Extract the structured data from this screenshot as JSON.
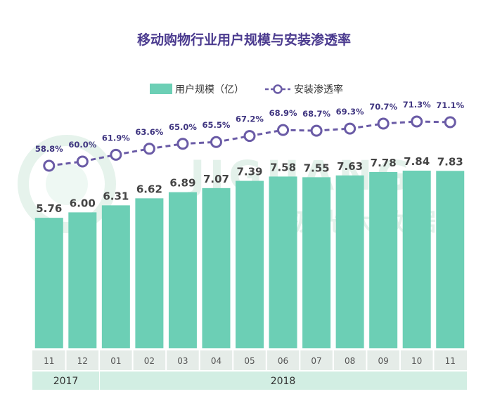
{
  "chart_data": {
    "type": "bar",
    "title": "移动购物行业用户规模与安装渗透率",
    "categories": [
      "11",
      "12",
      "01",
      "02",
      "03",
      "04",
      "05",
      "06",
      "07",
      "08",
      "09",
      "10",
      "11"
    ],
    "years": [
      {
        "label": "2017",
        "from": 0,
        "to": 1
      },
      {
        "label": "2018",
        "from": 2,
        "to": 12
      }
    ],
    "series": [
      {
        "name": "用户规模（亿）",
        "kind": "bar",
        "values": [
          5.76,
          6.0,
          6.31,
          6.62,
          6.89,
          7.07,
          7.39,
          7.58,
          7.55,
          7.63,
          7.78,
          7.84,
          7.83
        ],
        "labels": [
          "5.76",
          "6.00",
          "6.31",
          "6.62",
          "6.89",
          "7.07",
          "7.39",
          "7.58",
          "7.55",
          "7.63",
          "7.78",
          "7.84",
          "7.83"
        ]
      },
      {
        "name": "安装渗透率",
        "kind": "line",
        "values": [
          58.8,
          60.0,
          61.9,
          63.6,
          65.0,
          65.5,
          67.2,
          68.9,
          68.7,
          69.3,
          70.7,
          71.3,
          71.1
        ],
        "labels": [
          "58.8%",
          "60.0%",
          "61.9%",
          "63.6%",
          "65.0%",
          "65.5%",
          "67.2%",
          "68.9%",
          "68.7%",
          "69.3%",
          "70.7%",
          "71.3%",
          "71.1%"
        ]
      }
    ],
    "bar_range": [
      0,
      8.2
    ],
    "line_range": [
      56,
      73
    ],
    "legend_position": "top-center",
    "grid": false
  },
  "watermark": {
    "brand": "JIGUANG",
    "chinese": "极光大数据"
  },
  "colors": {
    "bar": "#6ccfb5",
    "line": "#6a5ba6",
    "title": "#4b3b8f",
    "month_cell": "#e5ece8",
    "year_cell": "#d2eee3"
  }
}
